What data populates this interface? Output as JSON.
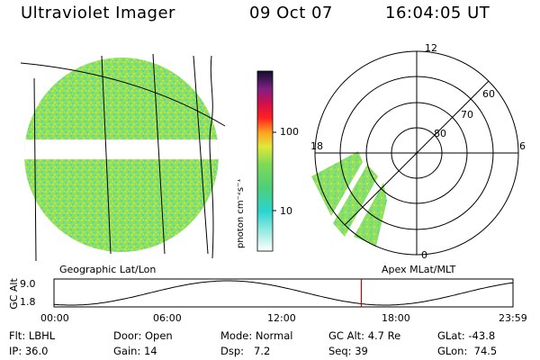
{
  "header": {
    "instrument": "Ultraviolet Imager",
    "date": "09 Oct 07",
    "time": "16:04:05 UT"
  },
  "colorbar": {
    "unit_label": "photon cm⁻²s⁻¹",
    "ticks": [
      "100",
      "10"
    ]
  },
  "panels": {
    "left_label": "Geographic Lat/Lon",
    "right_label": "Apex MLat/MLT"
  },
  "polar_plot": {
    "mlt_labels": {
      "top": "12",
      "left": "18",
      "right": "6",
      "bottom": "0"
    },
    "lat_labels": [
      "60",
      "70",
      "80"
    ]
  },
  "timeline": {
    "ylabel": "GC Alt",
    "y_ticks": [
      "9.0",
      "1.8"
    ],
    "x_ticks": [
      "00:00",
      "06:00",
      "12:00",
      "18:00",
      "23:59"
    ],
    "current_time_hours": 16.07
  },
  "status": {
    "filter": {
      "label": "Flt:",
      "value": "LBHL"
    },
    "ip": {
      "label": "IP:",
      "value": "36.0"
    },
    "door": {
      "label": "Door:",
      "value": "Open"
    },
    "gain": {
      "label": "Gain:",
      "value": "14"
    },
    "mode": {
      "label": "Mode:",
      "value": "Normal"
    },
    "dsp": {
      "label": "Dsp:",
      "value": "7.2"
    },
    "gc_alt": {
      "label": "GC Alt:",
      "value": "4.7 Re"
    },
    "seq": {
      "label": "Seq:",
      "value": "39"
    },
    "glat": {
      "label": "GLat:",
      "value": "-43.8"
    },
    "glon": {
      "label": "GLon:",
      "value": "74.5"
    }
  },
  "colors": {
    "aurora_green": "#7ed957",
    "aurora_cyan": "#3fd7c8",
    "aurora_yellow": "#d9e83a",
    "marker_red": "#cc0000"
  }
}
